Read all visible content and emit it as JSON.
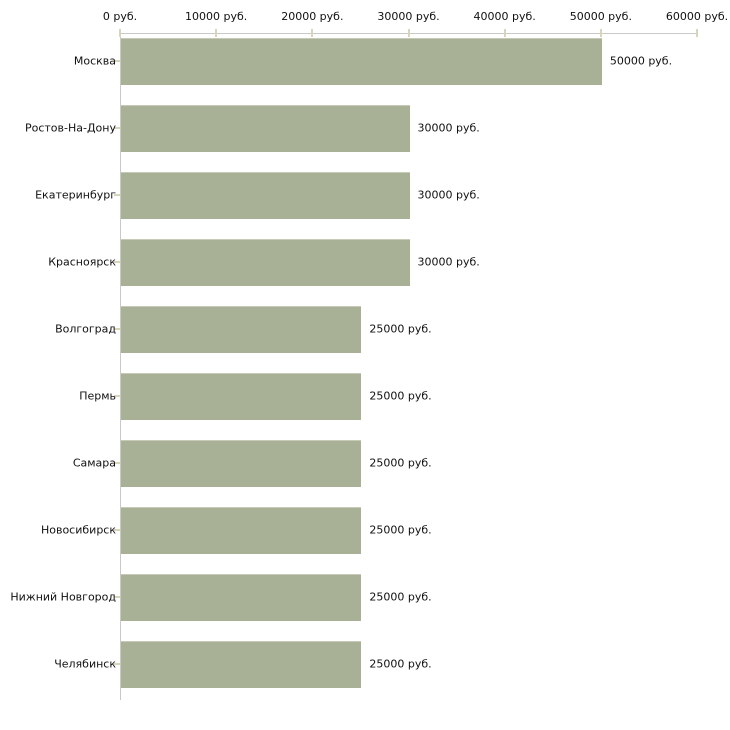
{
  "chart_data": {
    "type": "bar",
    "orientation": "horizontal",
    "title": "",
    "xlabel": "",
    "ylabel": "",
    "xlim": [
      0,
      60000
    ],
    "grid": false,
    "legend_position": "none",
    "categories": [
      "Москва",
      "Ростов-На-Дону",
      "Екатеринбург",
      "Красноярск",
      "Волгоград",
      "Пермь",
      "Самара",
      "Новосибирск",
      "Нижний Новгород",
      "Челябинск"
    ],
    "values": [
      50000,
      30000,
      30000,
      30000,
      25000,
      25000,
      25000,
      25000,
      25000,
      25000
    ],
    "bar_value_labels": [
      "50000 руб.",
      "30000 руб.",
      "30000 руб.",
      "30000 руб.",
      "25000 руб.",
      "25000 руб.",
      "25000 руб.",
      "25000 руб.",
      "25000 руб.",
      "25000 руб."
    ],
    "x_ticks": {
      "values": [
        0,
        10000,
        20000,
        30000,
        40000,
        50000,
        60000
      ],
      "labels": [
        "0 руб.",
        "10000 руб.",
        "20000 руб.",
        "30000 руб.",
        "40000 руб.",
        "50000 руб.",
        "60000 руб."
      ]
    },
    "colors": {
      "bar_fill": "#a8b096",
      "bar_top_edge": "#c6cab6",
      "axis_line": "#c9c9c9",
      "tick_mark": "#d8d5b8",
      "text": "#111111",
      "background": "#ffffff"
    }
  }
}
